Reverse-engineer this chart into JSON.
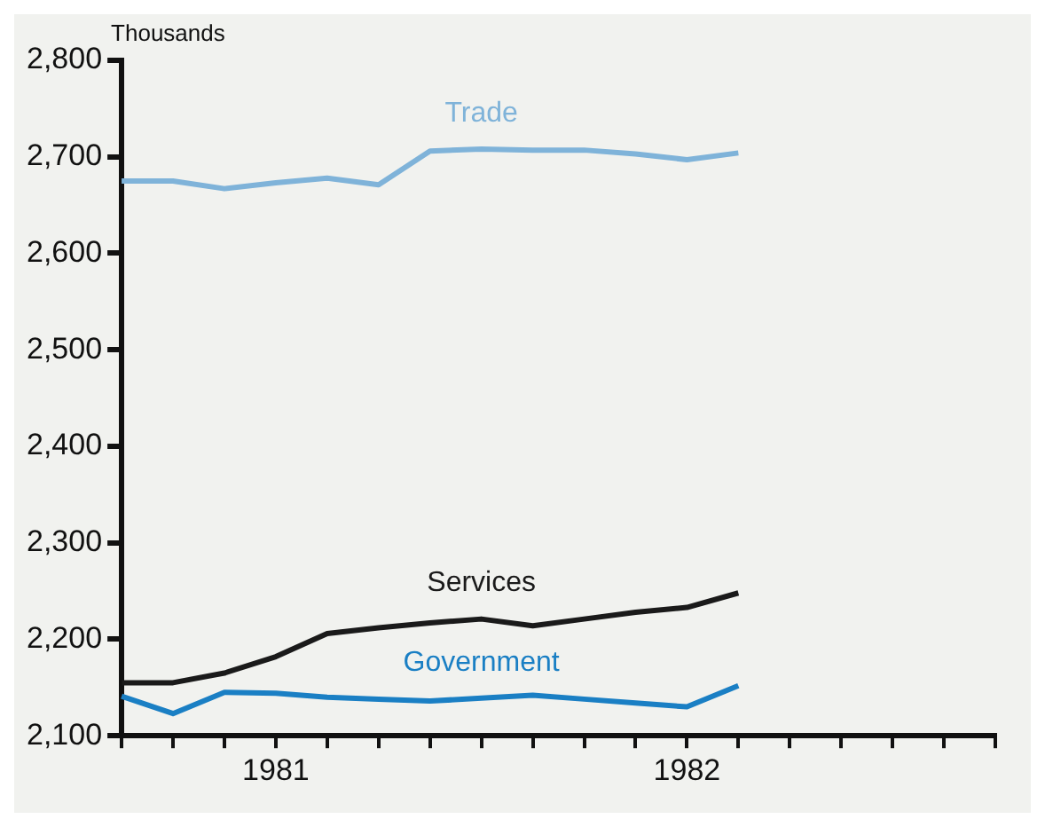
{
  "chart_data": {
    "type": "line",
    "ylabel": "Thousands",
    "categories": [
      null,
      null,
      null,
      "1981",
      null,
      null,
      null,
      null,
      null,
      null,
      null,
      "1982",
      null,
      null,
      null,
      null,
      null,
      null
    ],
    "ylim": [
      2100,
      2800
    ],
    "yticks": [
      {
        "value": 2100,
        "label": "2,100"
      },
      {
        "value": 2200,
        "label": "2,200"
      },
      {
        "value": 2300,
        "label": "2,300"
      },
      {
        "value": 2400,
        "label": "2,400"
      },
      {
        "value": 2500,
        "label": "2,500"
      },
      {
        "value": 2600,
        "label": "2,600"
      },
      {
        "value": 2700,
        "label": "2,700"
      },
      {
        "value": 2800,
        "label": "2,800"
      }
    ],
    "grid": false,
    "legend": false,
    "marker": "none",
    "line_style": "solid",
    "series": [
      {
        "name": "Trade",
        "color": "#7fb3d9",
        "values": [
          2675,
          2675,
          2667,
          2673,
          2678,
          2671,
          2706,
          2708,
          2707,
          2707,
          2703,
          2697,
          2704,
          null,
          null,
          null,
          null,
          null
        ]
      },
      {
        "name": "Services",
        "color": "#1a1a1a",
        "values": [
          2155,
          2155,
          2165,
          2182,
          2206,
          2212,
          2217,
          2221,
          2214,
          2221,
          2228,
          2233,
          2248,
          null,
          null,
          null,
          null,
          null
        ]
      },
      {
        "name": "Government",
        "color": "#1a7fc4",
        "values": [
          2141,
          2123,
          2145,
          2144,
          2140,
          2138,
          2136,
          2139,
          2142,
          2138,
          2134,
          2130,
          2152,
          null,
          null,
          null,
          null,
          null
        ]
      }
    ]
  }
}
